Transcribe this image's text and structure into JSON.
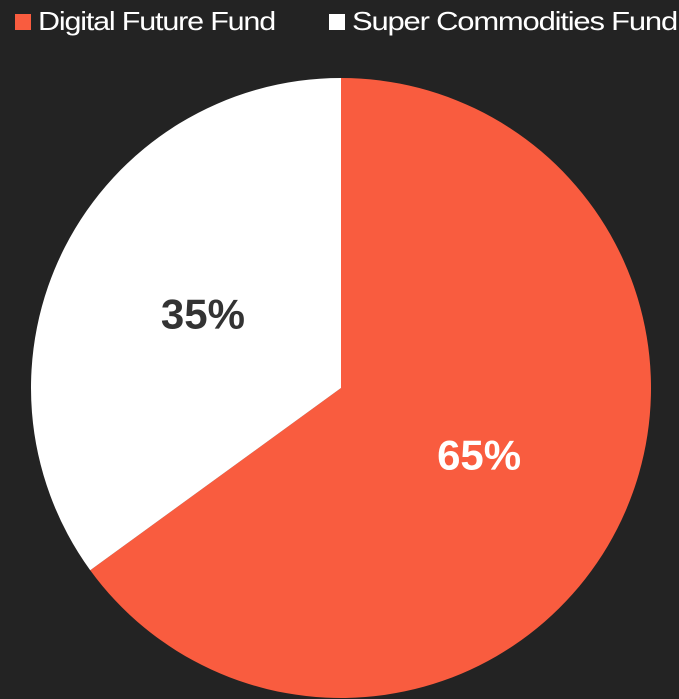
{
  "chart_data": {
    "type": "pie",
    "categories": [
      "Digital Future Fund",
      "Super Commodities Fund"
    ],
    "values": [
      65,
      35
    ],
    "value_labels": [
      "65%",
      "35%"
    ],
    "colors": [
      "#f95c3f",
      "#ffffff"
    ],
    "label_colors": [
      "#ffffff",
      "#333333"
    ],
    "legend": "top"
  }
}
